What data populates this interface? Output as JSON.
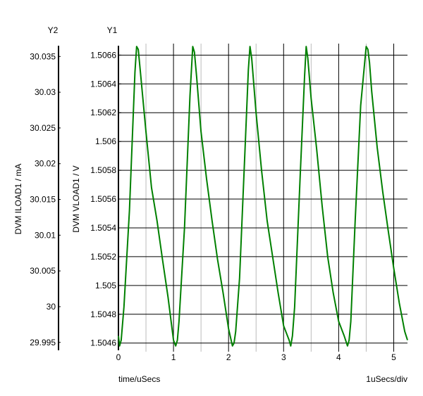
{
  "chart_data": {
    "type": "line",
    "y2_axis_title": "Y2",
    "y1_axis_title": "Y1",
    "y2_label": "DVM ILOAD1 / mA",
    "y1_label": "DVM VLOAD1 / V",
    "xlabel": "time/uSecs",
    "x_scale_label": "1uSecs/div",
    "xlim": [
      0,
      5.25
    ],
    "x_ticks": [
      "0",
      "1",
      "2",
      "3",
      "4",
      "5"
    ],
    "y1_lim": [
      1.50454,
      1.50668
    ],
    "y1_ticks": [
      "1.5046",
      "1.5048",
      "1.505",
      "1.5052",
      "1.5054",
      "1.5056",
      "1.5058",
      "1.506",
      "1.5062",
      "1.5064",
      "1.5066"
    ],
    "y2_lim": [
      29.9937,
      30.0368
    ],
    "y2_ticks": [
      "29.995",
      "30",
      "30.005",
      "30.01",
      "30.015",
      "30.02",
      "30.025",
      "30.03",
      "30.035"
    ],
    "grid": true,
    "series": [
      {
        "axis": "y1",
        "color": "#008000",
        "x": [
          0,
          0.02,
          0.05,
          0.1,
          0.2,
          0.3,
          0.33,
          0.36,
          0.4,
          0.5,
          0.6,
          0.7,
          0.8,
          0.9,
          1.0,
          1.04,
          1.07,
          1.1,
          1.2,
          1.3,
          1.35,
          1.38,
          1.42,
          1.5,
          1.6,
          1.7,
          1.8,
          1.9,
          2.0,
          2.07,
          2.1,
          2.13,
          2.2,
          2.3,
          2.36,
          2.39,
          2.42,
          2.5,
          2.6,
          2.7,
          2.8,
          2.9,
          3.0,
          3.1,
          3.13,
          3.16,
          3.2,
          3.3,
          3.38,
          3.41,
          3.44,
          3.5,
          3.6,
          3.7,
          3.8,
          3.9,
          4.0,
          4.1,
          4.16,
          4.19,
          4.22,
          4.3,
          4.4,
          4.5,
          4.53,
          4.56,
          4.6,
          4.7,
          4.8,
          4.9,
          5.0,
          5.1,
          5.2,
          5.25
        ],
        "values": [
          1.50465,
          1.50458,
          1.50462,
          1.50485,
          1.50552,
          1.50648,
          1.50666,
          1.50664,
          1.50648,
          1.50607,
          1.50568,
          1.50545,
          1.50518,
          1.50492,
          1.50462,
          1.50458,
          1.50462,
          1.50475,
          1.5054,
          1.50632,
          1.50666,
          1.50662,
          1.50645,
          1.50607,
          1.50574,
          1.50545,
          1.50518,
          1.50495,
          1.5047,
          1.50458,
          1.5046,
          1.50468,
          1.50505,
          1.50595,
          1.5065,
          1.50666,
          1.50658,
          1.5062,
          1.5058,
          1.50545,
          1.5052,
          1.50495,
          1.50472,
          1.50462,
          1.50458,
          1.50465,
          1.50485,
          1.50575,
          1.50645,
          1.50666,
          1.50658,
          1.5063,
          1.50595,
          1.50555,
          1.5052,
          1.50495,
          1.50475,
          1.50465,
          1.50458,
          1.50462,
          1.50475,
          1.50545,
          1.50625,
          1.50666,
          1.50664,
          1.50655,
          1.50635,
          1.50596,
          1.50565,
          1.50538,
          1.50512,
          1.50488,
          1.50468,
          1.50462
        ]
      }
    ]
  }
}
